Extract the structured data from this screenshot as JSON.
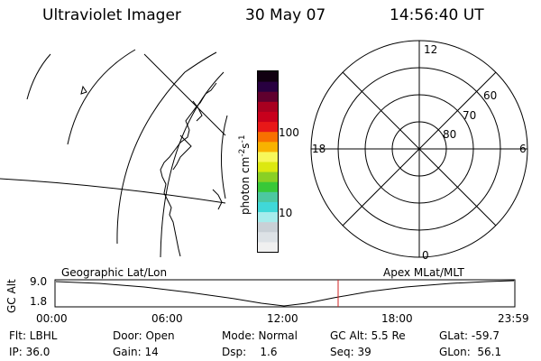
{
  "header": {
    "title": "Ultraviolet Imager",
    "date": "30 May 07",
    "time": "14:56:40 UT"
  },
  "colorbar": {
    "label": "photon cm",
    "label_sup1": "-2",
    "label_mid": "s",
    "label_sup2": "-1",
    "ticks": [
      "100",
      "10"
    ],
    "colors": [
      "#f0f0f0",
      "#dde2e6",
      "#c9d0d6",
      "#a6ecec",
      "#40d8d8",
      "#4cc8a0",
      "#38c838",
      "#8ad024",
      "#dce810",
      "#f7f75a",
      "#f8b200",
      "#f87000",
      "#e81818",
      "#c8001c",
      "#a80020",
      "#60002e",
      "#280040",
      "#100010"
    ]
  },
  "polar": {
    "labels": {
      "top": "12",
      "left": "18",
      "right": "6",
      "bottom": "0"
    },
    "lat_labels": [
      "60",
      "70",
      "80"
    ]
  },
  "timeline": {
    "left_title": "Geographic Lat/Lon",
    "right_title": "Apex MLat/MLT",
    "ylabel": "GC Alt",
    "y_top": "9.0",
    "y_bottom": "1.8",
    "x_ticks": [
      "00:00",
      "06:00",
      "12:00",
      "18:00",
      "23:59"
    ],
    "marker_color": "#d02020"
  },
  "status": {
    "row1": [
      "Flt: LBHL",
      "Door: Open",
      "Mode: Normal",
      "GC Alt: 5.5 Re",
      "GLat: -59.7"
    ],
    "row2": [
      "IP: 36.0",
      "Gain: 14",
      "Dsp:    1.6",
      "Seq: 39",
      "GLon:  56.1"
    ]
  }
}
